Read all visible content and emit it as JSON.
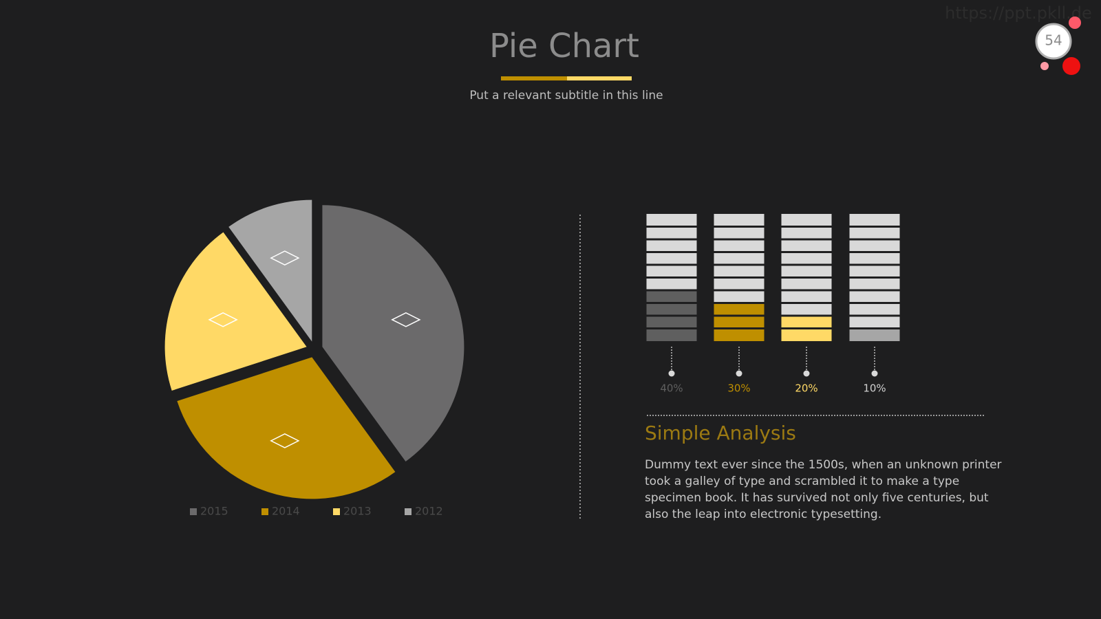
{
  "header": {
    "title": "Pie Chart",
    "subtitle": "Put a relevant subtitle in this line"
  },
  "watermark": "https://ppt.pkll.de",
  "page_number": 54,
  "chart_data": [
    {
      "type": "pie",
      "categories": [
        "2015",
        "2014",
        "2013",
        "2012"
      ],
      "values": [
        40,
        30,
        20,
        10
      ],
      "colors": [
        "#6b6a6b",
        "#bf8f00",
        "#ffd966",
        "#a6a6a6"
      ],
      "legend": "bottom"
    },
    {
      "type": "bar",
      "values": [
        40,
        30,
        20,
        10
      ],
      "value_labels": [
        "40%",
        "30%",
        "20%",
        "10%"
      ],
      "colors": [
        "#5f5f5f",
        "#bf8f00",
        "#ffd966",
        "#a6a6a6"
      ],
      "ylim": [
        0,
        100
      ]
    }
  ],
  "analysis": {
    "title": "Simple Analysis",
    "text": "Dummy text ever since the 1500s, when an unknown printer took a galley of type and scrambled it to make a type specimen book. It has survived not only five centuries, but also the leap into electronic typesetting."
  }
}
